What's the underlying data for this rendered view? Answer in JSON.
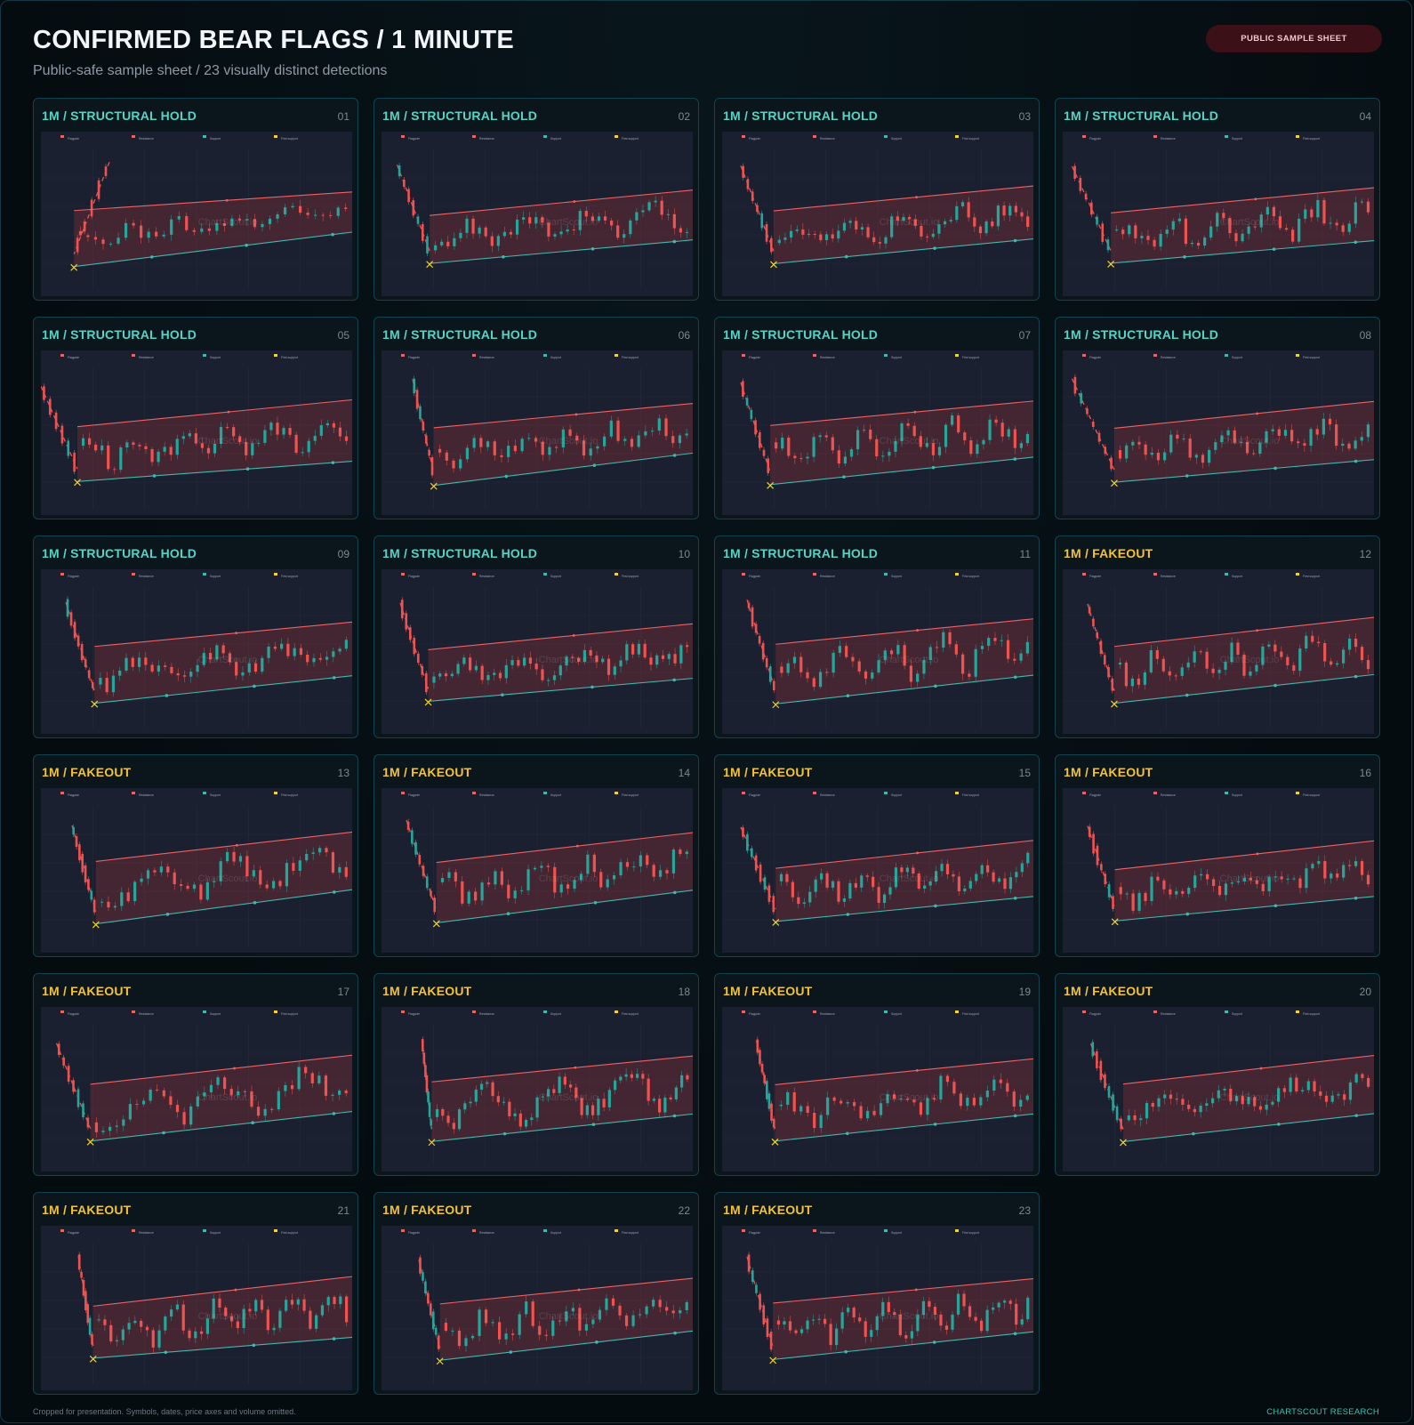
{
  "header": {
    "title": "CONFIRMED BEAR FLAGS / 1 MINUTE",
    "subtitle": "Public-safe sample sheet / 23 visually distinct detections",
    "badge": "PUBLIC SAMPLE SHEET"
  },
  "footer": {
    "note": "Cropped for presentation. Symbols, dates, price axes and volume omitted.",
    "credit": "CHARTSCOUT RESEARCH"
  },
  "colors": {
    "background": "#050d12",
    "card": "#0a151c",
    "plot": "#1b2030",
    "bull": "#26a69a",
    "bear": "#ef5350",
    "resistance": "#f06262",
    "support": "#3fb8ad",
    "first_support": "#f2d22e",
    "hold_label": "#56d4c6",
    "fakeout_label": "#f2c237"
  },
  "watermark": "ChartScout.io",
  "legend": [
    "Flagpole",
    "Resistance",
    "Support",
    "First support"
  ],
  "chart_data": [
    {
      "id": "01",
      "label": "1M / STRUCTURAL HOLD",
      "kind": "hold",
      "type": "candlestick",
      "shape": [
        0.22,
        0.07,
        0.21,
        0.35,
        0.31,
        0.32,
        0.55,
        0.4,
        0.11,
        0.8
      ]
    },
    {
      "id": "02",
      "label": "1M / STRUCTURAL HOLD",
      "kind": "hold",
      "type": "candlestick",
      "shape": [
        0.05,
        0.12,
        0.43,
        0.19,
        0.11,
        0.59,
        0.19,
        0.5,
        0.73,
        0.3
      ]
    },
    {
      "id": "03",
      "label": "1M / STRUCTURAL HOLD",
      "kind": "hold",
      "type": "candlestick",
      "shape": [
        0.06,
        0.14,
        0.48,
        0.2,
        0.23,
        0.57,
        0.23,
        0.56,
        0.5,
        0.42
      ]
    },
    {
      "id": "04",
      "label": "1M / STRUCTURAL HOLD",
      "kind": "hold",
      "type": "candlestick",
      "shape": [
        0.03,
        0.15,
        0.43,
        0.18,
        0.17,
        0.58,
        0.16,
        0.5,
        0.67,
        0.63
      ]
    },
    {
      "id": "05",
      "label": "1M / STRUCTURAL HOLD",
      "kind": "hold",
      "type": "candlestick",
      "shape": [
        0.0,
        0.17,
        0.26,
        0.15,
        0.28,
        0.65,
        0.08,
        0.55,
        0.39,
        0.66
      ]
    },
    {
      "id": "06",
      "label": "1M / STRUCTURAL HOLD",
      "kind": "hold",
      "type": "candlestick",
      "shape": [
        0.1,
        0.04,
        0.49,
        0.35,
        0.35,
        0.55,
        0.48,
        0.43,
        0.27,
        0.9
      ]
    },
    {
      "id": "07",
      "label": "1M / STRUCTURAL HOLD",
      "kind": "hold",
      "type": "candlestick",
      "shape": [
        0.06,
        0.1,
        0.43,
        0.31,
        0.39,
        0.55,
        0.32,
        0.52,
        0.55,
        0.77
      ]
    },
    {
      "id": "08",
      "label": "1M / STRUCTURAL HOLD",
      "kind": "hold",
      "type": "candlestick",
      "shape": [
        0.03,
        0.03,
        0.48,
        0.19,
        0.26,
        0.65,
        0.16,
        0.48,
        0.16,
        0.62
      ]
    },
    {
      "id": "09",
      "label": "1M / STRUCTURAL HOLD",
      "kind": "hold",
      "type": "candlestick",
      "shape": [
        0.08,
        0.12,
        0.51,
        0.3,
        0.33,
        0.55,
        0.32,
        0.46,
        0.45,
        0.21
      ]
    },
    {
      "id": "10",
      "label": "1M / STRUCTURAL HOLD",
      "kind": "hold",
      "type": "candlestick",
      "shape": [
        0.06,
        0.13,
        0.41,
        0.2,
        0.2,
        0.61,
        0.17,
        0.55,
        0.22,
        0.33
      ]
    },
    {
      "id": "11",
      "label": "1M / STRUCTURAL HOLD",
      "kind": "hold",
      "type": "candlestick",
      "shape": [
        0.08,
        0.07,
        0.51,
        0.33,
        0.4,
        0.59,
        0.36,
        0.46,
        0.9,
        0.6
      ]
    },
    {
      "id": "12",
      "label": "1M / FAKEOUT",
      "kind": "fakeout",
      "type": "candlestick",
      "shape": [
        0.08,
        0.15,
        0.48,
        0.3,
        0.33,
        0.74,
        0.36,
        0.52,
        0.78,
        0.92
      ]
    },
    {
      "id": "13",
      "label": "1M / FAKEOUT",
      "kind": "fakeout",
      "type": "candlestick",
      "shape": [
        0.1,
        0.2,
        0.53,
        0.39,
        0.47,
        0.75,
        0.54,
        0.45,
        0.81,
        0.13
      ]
    },
    {
      "id": "14",
      "label": "1M / FAKEOUT",
      "kind": "fakeout",
      "type": "candlestick",
      "shape": [
        0.08,
        0.1,
        0.53,
        0.34,
        0.42,
        0.77,
        0.49,
        0.44,
        0.31,
        0.73
      ]
    },
    {
      "id": "15",
      "label": "1M / FAKEOUT",
      "kind": "fakeout",
      "type": "candlestick",
      "shape": [
        0.06,
        0.23,
        0.51,
        0.27,
        0.24,
        0.69,
        0.24,
        0.58,
        0.76,
        0.75
      ]
    },
    {
      "id": "16",
      "label": "1M / FAKEOUT",
      "kind": "fakeout",
      "type": "candlestick",
      "shape": [
        0.08,
        0.21,
        0.49,
        0.24,
        0.19,
        0.73,
        0.22,
        0.52,
        0.33,
        0.89
      ]
    },
    {
      "id": "17",
      "label": "1M / FAKEOUT",
      "kind": "fakeout",
      "type": "candlestick",
      "shape": [
        0.05,
        0.18,
        0.45,
        0.31,
        0.33,
        0.74,
        0.39,
        0.44,
        0.7,
        0.15
      ]
    },
    {
      "id": "18",
      "label": "1M / FAKEOUT",
      "kind": "fakeout",
      "type": "candlestick",
      "shape": [
        0.13,
        0.1,
        0.46,
        0.33,
        0.4,
        0.61,
        0.32,
        0.61,
        0.79,
        0.07
      ]
    },
    {
      "id": "19",
      "label": "1M / FAKEOUT",
      "kind": "fakeout",
      "type": "candlestick",
      "shape": [
        0.11,
        0.13,
        0.5,
        0.31,
        0.32,
        0.61,
        0.31,
        0.45,
        0.51,
        0.62
      ]
    },
    {
      "id": "20",
      "label": "1M / FAKEOUT",
      "kind": "fakeout",
      "type": "candlestick",
      "shape": [
        0.09,
        0.19,
        0.61,
        0.34,
        0.35,
        0.72,
        0.34,
        0.52,
        0.14,
        0.2
      ]
    },
    {
      "id": "21",
      "label": "1M / FAKEOUT",
      "kind": "fakeout",
      "type": "candlestick",
      "shape": [
        0.12,
        0.06,
        0.49,
        0.22,
        0.21,
        0.76,
        0.1,
        0.53,
        0.67,
        0.86
      ]
    },
    {
      "id": "22",
      "label": "1M / FAKEOUT",
      "kind": "fakeout",
      "type": "candlestick",
      "shape": [
        0.12,
        0.14,
        0.58,
        0.33,
        0.32,
        0.6,
        0.38,
        0.43,
        0.68,
        0.92
      ]
    },
    {
      "id": "23",
      "label": "1M / FAKEOUT",
      "kind": "fakeout",
      "type": "candlestick",
      "shape": [
        0.08,
        0.08,
        0.47,
        0.29,
        0.32,
        0.55,
        0.33,
        0.58,
        0.63,
        0.88
      ]
    }
  ]
}
